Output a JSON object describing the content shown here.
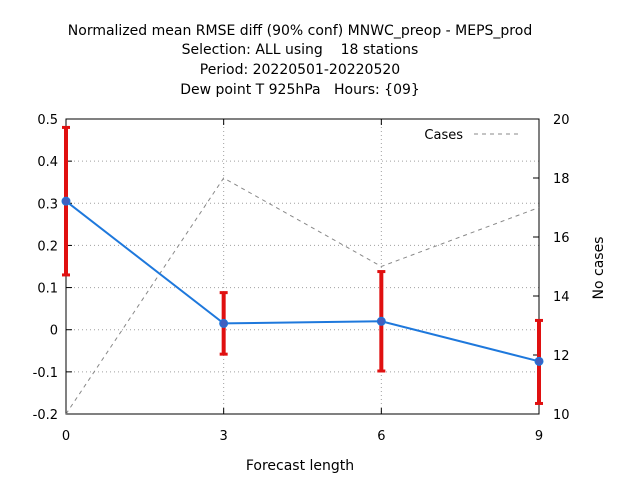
{
  "chart_data": {
    "type": "line",
    "title_lines": [
      "Normalized mean RMSE diff (90% conf) MNWC_preop - MEPS_prod",
      "Selection: ALL using    18 stations",
      "Period: 20220501-20220520",
      "Dew point T 925hPa   Hours: {09}"
    ],
    "xlabel": "Forecast length",
    "ylabel": "",
    "y2label": "No cases",
    "x_ticks": [
      "0",
      "3",
      "6",
      "9"
    ],
    "y_ticks": [
      "-0.2",
      "-0.1",
      "0",
      "0.1",
      "0.2",
      "0.3",
      "0.4",
      "0.5"
    ],
    "y2_ticks": [
      "10",
      "12",
      "14",
      "16",
      "18",
      "20"
    ],
    "xlim": [
      0,
      9
    ],
    "ylim": [
      -0.2,
      0.5
    ],
    "y2lim": [
      10,
      20
    ],
    "grid": true,
    "legend_position": "top-right",
    "series": [
      {
        "name": "",
        "color": "#1e78dc",
        "x": [
          0,
          3,
          6,
          9
        ],
        "y": [
          0.305,
          0.015,
          0.02,
          -0.075
        ],
        "err_low": [
          0.13,
          -0.058,
          -0.098,
          -0.175
        ],
        "err_high": [
          0.48,
          0.088,
          0.138,
          0.022
        ],
        "err_color": "#e01010"
      },
      {
        "name": "Cases",
        "axis": "y2",
        "color": "#888888",
        "dashed": true,
        "x": [
          0,
          3,
          6,
          9
        ],
        "y": [
          10,
          18,
          15,
          17
        ]
      }
    ]
  }
}
